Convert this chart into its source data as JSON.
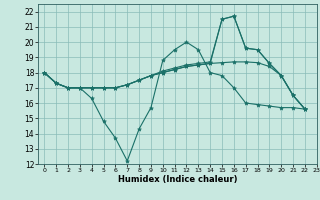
{
  "xlabel": "Humidex (Indice chaleur)",
  "bg_color": "#c8e8e0",
  "grid_color": "#8abcb8",
  "line_color": "#1a7068",
  "xlim": [
    -0.5,
    23
  ],
  "ylim": [
    12,
    22.5
  ],
  "xticks": [
    0,
    1,
    2,
    3,
    4,
    5,
    6,
    7,
    8,
    9,
    10,
    11,
    12,
    13,
    14,
    15,
    16,
    17,
    18,
    19,
    20,
    21,
    22,
    23
  ],
  "yticks": [
    12,
    13,
    14,
    15,
    16,
    17,
    18,
    19,
    20,
    21,
    22
  ],
  "series": [
    {
      "x": [
        0,
        1,
        2,
        3,
        4,
        5,
        6,
        7,
        8,
        9,
        10,
        11,
        12,
        13,
        14,
        15,
        16,
        17,
        18,
        19,
        20,
        21,
        22
      ],
      "y": [
        18,
        17.3,
        17,
        17,
        16.3,
        14.8,
        13.7,
        12.2,
        14.3,
        15.7,
        18.8,
        19.5,
        20,
        19.5,
        18,
        17.8,
        17,
        16,
        15.9,
        15.8,
        15.7,
        15.7,
        15.6
      ]
    },
    {
      "x": [
        0,
        1,
        2,
        3,
        4,
        5,
        6,
        7,
        8,
        9,
        10,
        11,
        12,
        13,
        14,
        15,
        16,
        17,
        18,
        19,
        20,
        21,
        22
      ],
      "y": [
        18,
        17.3,
        17,
        17,
        17,
        17,
        17,
        17.2,
        17.5,
        17.8,
        18.0,
        18.2,
        18.4,
        18.5,
        18.6,
        18.65,
        18.7,
        18.7,
        18.65,
        18.4,
        17.8,
        16.5,
        15.6
      ]
    },
    {
      "x": [
        0,
        1,
        2,
        3,
        4,
        5,
        6,
        7,
        8,
        9,
        10,
        11,
        12,
        13,
        14,
        15,
        16,
        17,
        18,
        19,
        20,
        21,
        22
      ],
      "y": [
        18,
        17.3,
        17,
        17,
        17,
        17,
        17,
        17.2,
        17.5,
        17.8,
        18.0,
        18.2,
        18.4,
        18.5,
        18.6,
        21.5,
        21.7,
        19.6,
        19.5,
        18.6,
        17.8,
        16.5,
        15.6
      ]
    },
    {
      "x": [
        0,
        1,
        2,
        3,
        4,
        5,
        6,
        7,
        8,
        9,
        10,
        11,
        12,
        13,
        14,
        15,
        16,
        17,
        18,
        19,
        20,
        21,
        22
      ],
      "y": [
        18,
        17.3,
        17,
        17,
        17,
        17,
        17,
        17.2,
        17.5,
        17.8,
        18.1,
        18.3,
        18.5,
        18.6,
        18.7,
        21.5,
        21.7,
        19.6,
        19.5,
        18.6,
        17.8,
        16.5,
        15.6
      ]
    }
  ],
  "marker": "*",
  "markersize": 3,
  "linewidth": 0.8
}
